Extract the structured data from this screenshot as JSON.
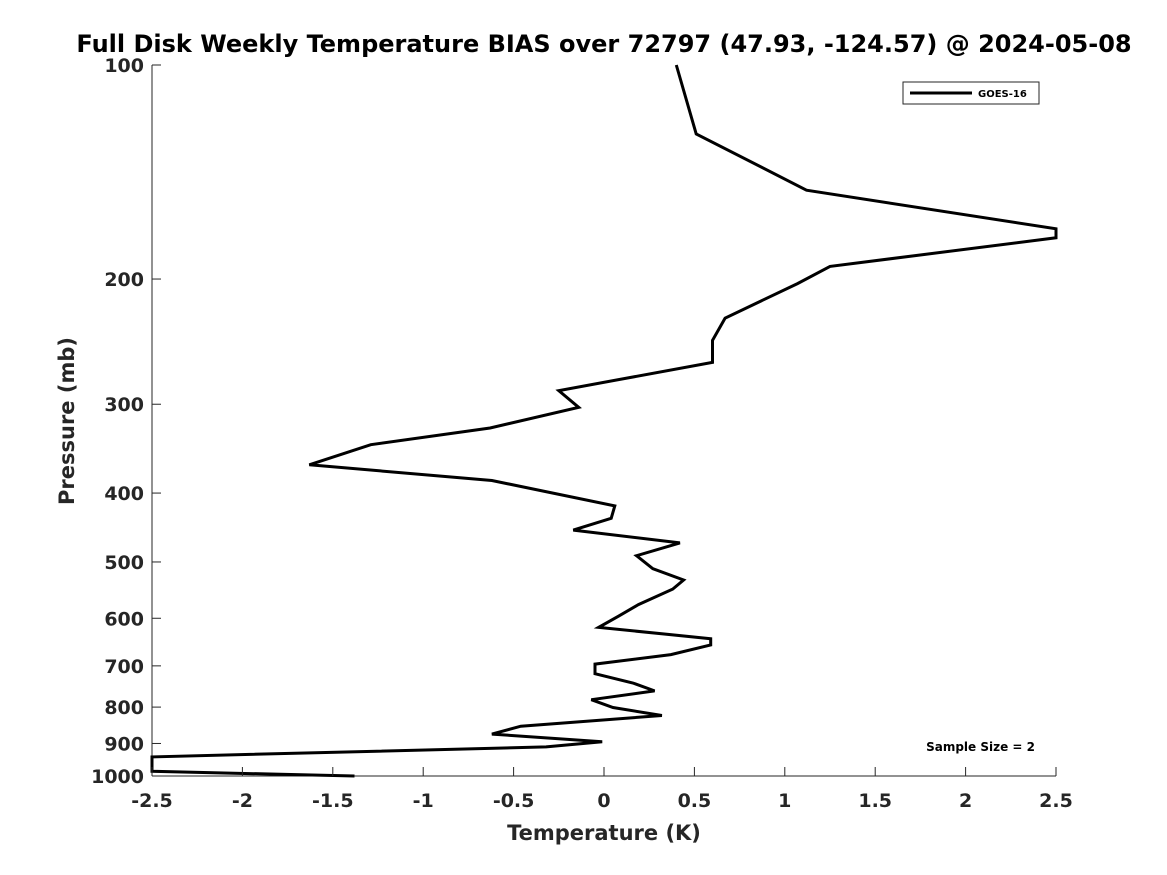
{
  "chart_data": {
    "type": "line",
    "title": "Full Disk Weekly Temperature BIAS over 72797 (47.93, -124.57) @ 2024-05-08",
    "xlabel": "Temperature (K)",
    "ylabel": "Pressure (mb)",
    "xlim": [
      -2.5,
      2.5
    ],
    "ylim": [
      100,
      1000
    ],
    "y_scale": "log",
    "y_reversed": true,
    "x_ticks": [
      -2.5,
      -2,
      -1.5,
      -1,
      -0.5,
      0,
      0.5,
      1,
      1.5,
      2,
      2.5
    ],
    "x_tick_labels": [
      "-2.5",
      "-2",
      "-1.5",
      "-1",
      "-0.5",
      "0",
      "0.5",
      "1",
      "1.5",
      "2",
      "2.5"
    ],
    "y_ticks": [
      100,
      200,
      300,
      400,
      500,
      600,
      700,
      800,
      900,
      1000
    ],
    "y_tick_labels": [
      "100",
      "200",
      "300",
      "400",
      "500",
      "600",
      "700",
      "800",
      "900",
      "1000"
    ],
    "grid": false,
    "legend_position": "top-right",
    "annotation": "Sample Size = 2",
    "series": [
      {
        "name": "GOES-16",
        "color": "#000000",
        "points": [
          [
            0.4,
            100
          ],
          [
            0.51,
            125
          ],
          [
            1.12,
            150
          ],
          [
            2.5,
            170
          ],
          [
            2.5,
            175
          ],
          [
            1.25,
            192
          ],
          [
            1.07,
            203
          ],
          [
            0.67,
            227
          ],
          [
            0.6,
            244
          ],
          [
            0.6,
            262
          ],
          [
            -0.25,
            287
          ],
          [
            -0.14,
            303
          ],
          [
            -0.63,
            324
          ],
          [
            -1.29,
            342
          ],
          [
            -1.63,
            365
          ],
          [
            -0.62,
            384
          ],
          [
            0.06,
            417
          ],
          [
            0.04,
            434
          ],
          [
            -0.17,
            451
          ],
          [
            0.42,
            470
          ],
          [
            0.18,
            490
          ],
          [
            0.27,
            511
          ],
          [
            0.44,
            530
          ],
          [
            0.38,
            546
          ],
          [
            0.19,
            574
          ],
          [
            0.08,
            596
          ],
          [
            -0.03,
            618
          ],
          [
            0.59,
            641
          ],
          [
            0.59,
            654
          ],
          [
            0.37,
            675
          ],
          [
            -0.05,
            696
          ],
          [
            -0.05,
            718
          ],
          [
            0.16,
            740
          ],
          [
            0.28,
            759
          ],
          [
            -0.07,
            781
          ],
          [
            0.05,
            801
          ],
          [
            0.32,
            822
          ],
          [
            -0.46,
            851
          ],
          [
            -0.62,
            873
          ],
          [
            -0.01,
            895
          ],
          [
            -0.32,
            910
          ],
          [
            -2.5,
            940
          ],
          [
            -2.5,
            985
          ],
          [
            -1.38,
            1000
          ]
        ]
      }
    ]
  }
}
